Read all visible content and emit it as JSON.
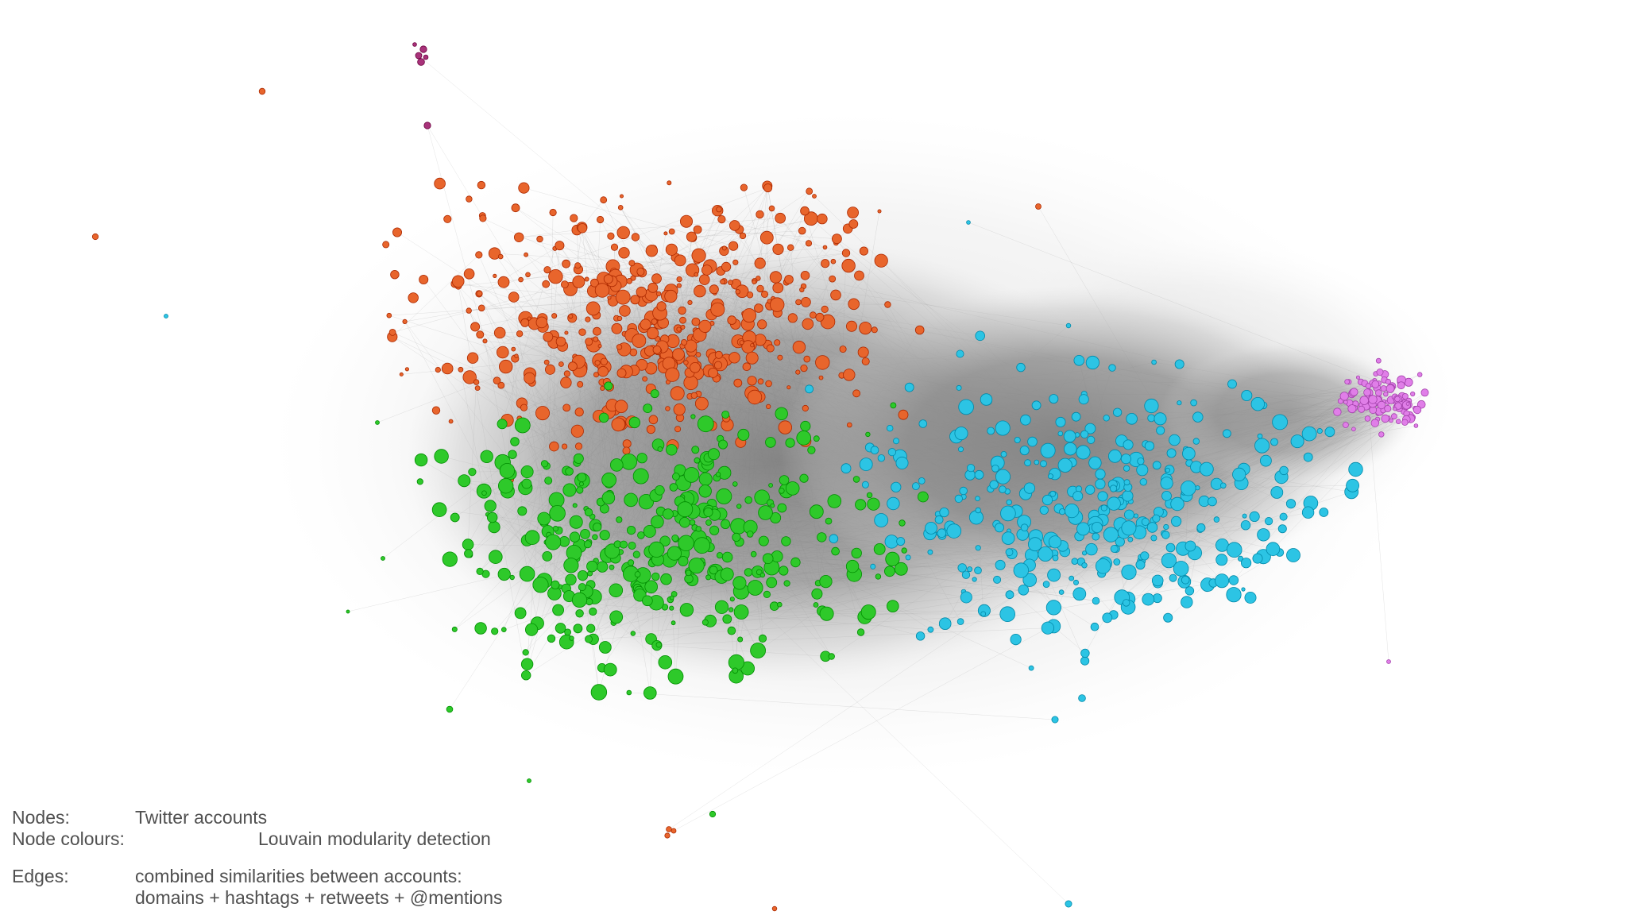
{
  "legend": {
    "nodes_key": "Nodes:",
    "nodes_value": "Twitter accounts",
    "colours_key": "Node colours:",
    "colours_value": "Louvain modularity detection",
    "edges_key": "Edges:",
    "edges_value_1": "combined similarities between accounts:",
    "edges_value_2": "domains + hashtags + retweets + @mentions"
  },
  "colors": {
    "background": "#ffffff",
    "edges": "#8c8c8c",
    "cluster_orange": "#e8652c",
    "cluster_green": "#2ec92a",
    "cluster_cyan": "#2cc4e4",
    "cluster_pink": "#e07ee8",
    "cluster_magenta": "#a8327a",
    "legend_text": "#505050"
  }
}
